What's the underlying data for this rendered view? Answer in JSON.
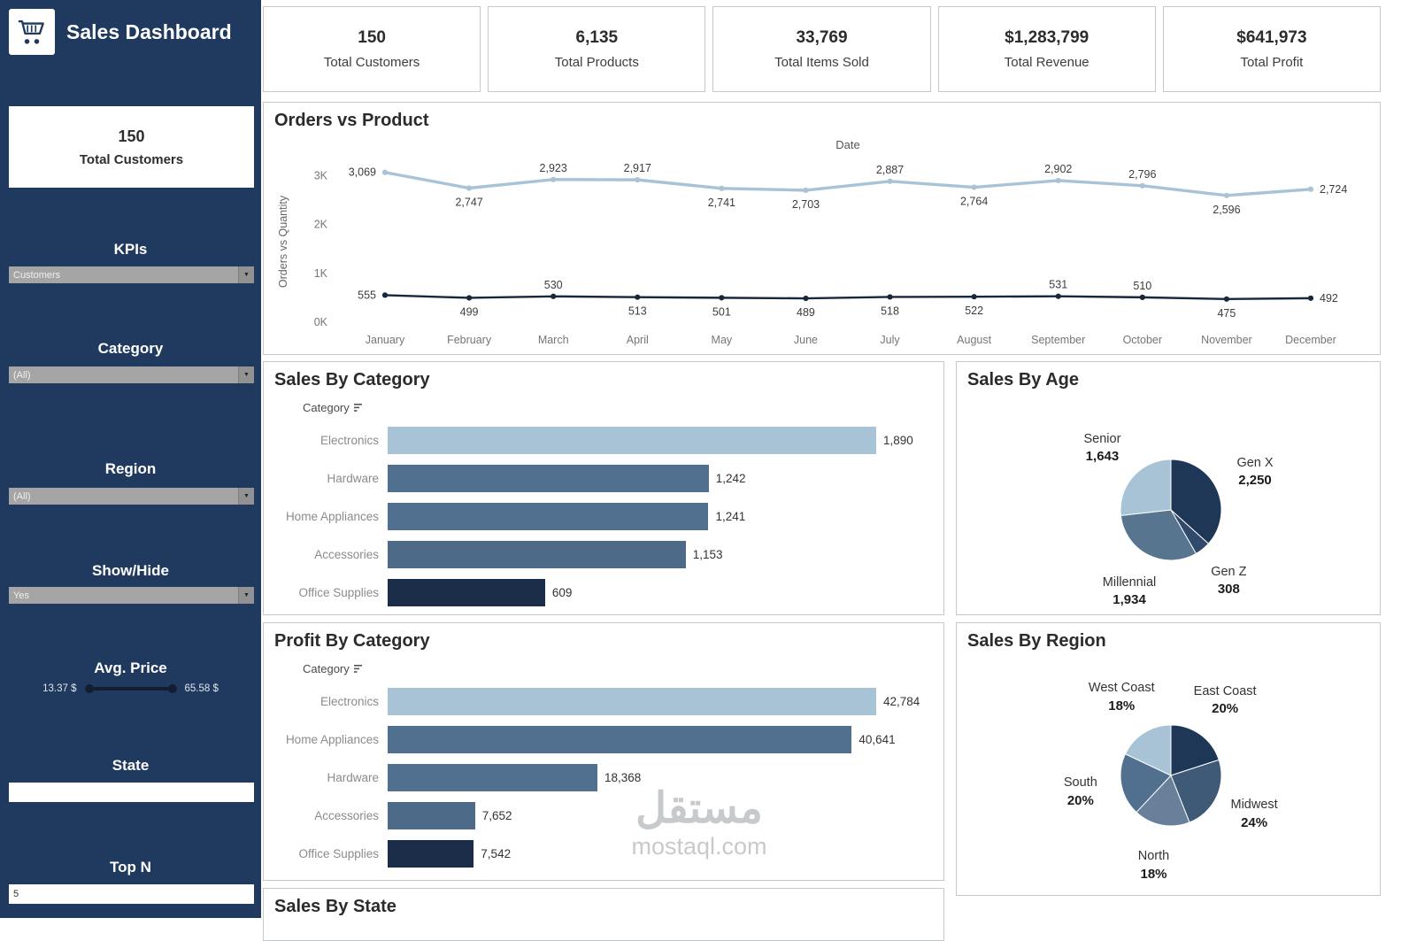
{
  "app": {
    "title": "Sales Dashboard"
  },
  "kpis": [
    {
      "value": "150",
      "label": "Total Customers"
    },
    {
      "value": "6,135",
      "label": "Total Products"
    },
    {
      "value": "33,769",
      "label": "Total Items Sold"
    },
    {
      "value": "$1,283,799",
      "label": "Total Revenue"
    },
    {
      "value": "$641,973",
      "label": "Total Profit"
    }
  ],
  "sidebar": {
    "summary": {
      "value": "150",
      "label": "Total Customers"
    },
    "kpis_filter": {
      "label": "KPIs",
      "value": "Customers"
    },
    "category_filter": {
      "label": "Category",
      "value": "(All)"
    },
    "region_filter": {
      "label": "Region",
      "value": "(All)"
    },
    "show_hide_filter": {
      "label": "Show/Hide",
      "value": "Yes"
    },
    "avg_price": {
      "label": "Avg. Price",
      "min_label": "13.37 $",
      "max_label": "65.58 $"
    },
    "state_filter": {
      "label": "State",
      "value": ""
    },
    "top_n": {
      "label": "Top N",
      "value": "5"
    }
  },
  "watermark": {
    "line1": "مستقل",
    "line2": "mostaql.com"
  },
  "chart_data": {
    "orders_vs_product": {
      "type": "line",
      "title": "Orders vs Product",
      "x_axis_title": "Date",
      "ylabel": "Orders vs Quantity",
      "x": [
        "January",
        "February",
        "March",
        "April",
        "May",
        "June",
        "July",
        "August",
        "September",
        "October",
        "November",
        "December"
      ],
      "ylim": [
        0,
        3300
      ],
      "yticks": [
        {
          "v": 0,
          "t": "0K"
        },
        {
          "v": 1000,
          "t": "1K"
        },
        {
          "v": 2000,
          "t": "2K"
        },
        {
          "v": 3000,
          "t": "3K"
        }
      ],
      "series": [
        {
          "name": "Quantity",
          "color": "#a9c3d6",
          "values": [
            3069,
            2747,
            2923,
            2917,
            2741,
            2703,
            2887,
            2764,
            2902,
            2796,
            2596,
            2724
          ],
          "labels": [
            "3,069",
            "2,747",
            "2,923",
            "2,917",
            "2,741",
            "2,703",
            "2,887",
            "2,764",
            "2,902",
            "2,796",
            "2,596",
            "2,724"
          ],
          "label_pos": [
            "left",
            "below",
            "above",
            "above",
            "below",
            "below",
            "above",
            "below",
            "above",
            "above",
            "below",
            "right"
          ]
        },
        {
          "name": "Orders",
          "color": "#16283c",
          "values": [
            555,
            499,
            530,
            513,
            501,
            489,
            518,
            522,
            531,
            510,
            475,
            492
          ],
          "labels": [
            "555",
            "499",
            "530",
            "513",
            "501",
            "489",
            "518",
            "522",
            "531",
            "510",
            "475",
            "492"
          ],
          "label_pos": [
            "left",
            "below",
            "above",
            "below",
            "below",
            "below",
            "below",
            "below",
            "above",
            "above",
            "below",
            "right"
          ]
        }
      ]
    },
    "sales_by_category": {
      "type": "bar",
      "title": "Sales By Category",
      "column_header": "Category",
      "categories": [
        "Electronics",
        "Hardware",
        "Home Appliances",
        "Accessories",
        "Office Supplies"
      ],
      "values": [
        1890,
        1242,
        1241,
        1153,
        609
      ],
      "labels": [
        "1,890",
        "1,242",
        "1,241",
        "1,153",
        "609"
      ],
      "colors": [
        "#a9c3d6",
        "#51708f",
        "#51708f",
        "#4d6a88",
        "#1b2d49"
      ]
    },
    "profit_by_category": {
      "type": "bar",
      "title": "Profit By Category",
      "column_header": "Category",
      "categories": [
        "Electronics",
        "Home Appliances",
        "Hardware",
        "Accessories",
        "Office Supplies"
      ],
      "values": [
        42784,
        40641,
        18368,
        7652,
        7542
      ],
      "labels": [
        "42,784",
        "40,641",
        "18,368",
        "7,652",
        "7,542"
      ],
      "colors": [
        "#a9c3d6",
        "#51708f",
        "#51708f",
        "#4d6a88",
        "#1b2d49"
      ]
    },
    "sales_by_age": {
      "type": "pie",
      "title": "Sales By Age",
      "slices": [
        {
          "name": "Gen X",
          "value": 2250,
          "label": "2,250",
          "color": "#1e3756"
        },
        {
          "name": "Gen Z",
          "value": 308,
          "label": "308",
          "color": "#31496a"
        },
        {
          "name": "Millennial",
          "value": 1934,
          "label": "1,934",
          "color": "#587590"
        },
        {
          "name": "Senior",
          "value": 1643,
          "label": "1,643",
          "color": "#a9c3d6"
        }
      ]
    },
    "sales_by_region": {
      "type": "pie",
      "title": "Sales By Region",
      "slices": [
        {
          "name": "East Coast",
          "value": 20,
          "label": "20%",
          "color": "#1e3756"
        },
        {
          "name": "Midwest",
          "value": 24,
          "label": "24%",
          "color": "#3e5a77"
        },
        {
          "name": "North",
          "value": 18,
          "label": "18%",
          "color": "#68809a"
        },
        {
          "name": "South",
          "value": 20,
          "label": "20%",
          "color": "#51708f"
        },
        {
          "name": "West Coast",
          "value": 18,
          "label": "18%",
          "color": "#a9c3d6"
        }
      ]
    },
    "sales_by_state": {
      "type": "bar",
      "title": "Sales By State"
    }
  }
}
